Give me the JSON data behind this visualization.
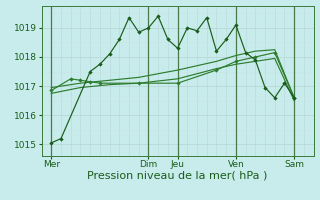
{
  "background_color": "#c8ecec",
  "grid_color_major": "#b8d8d8",
  "grid_color_minor": "#c8e4e4",
  "line_color_dark": "#1a5c1a",
  "line_color_medium": "#2e7d2e",
  "ylim": [
    1014.6,
    1019.75
  ],
  "yticks": [
    1015,
    1016,
    1017,
    1018,
    1019
  ],
  "xlabel": "Pression niveau de la mer( hPa )",
  "xlabel_fontsize": 8,
  "tick_fontsize": 6.5,
  "day_labels": [
    "Mer",
    "Dim",
    "Jeu",
    "Ven",
    "Sam"
  ],
  "day_positions": [
    0,
    10,
    13,
    19,
    25
  ],
  "xlim": [
    -1,
    27
  ],
  "series1_x": [
    0,
    1,
    4,
    5,
    6,
    7,
    8,
    9,
    10,
    11,
    12,
    13,
    14,
    15,
    16,
    17,
    18,
    19,
    20,
    21,
    22,
    23,
    24,
    25
  ],
  "series1_y": [
    1015.05,
    1015.2,
    1017.5,
    1017.75,
    1018.1,
    1018.6,
    1019.35,
    1018.85,
    1019.0,
    1019.4,
    1018.6,
    1018.3,
    1019.0,
    1018.9,
    1019.35,
    1018.2,
    1018.6,
    1019.1,
    1018.15,
    1017.9,
    1016.95,
    1016.6,
    1017.1,
    1016.6
  ],
  "series2_x": [
    0,
    2,
    3,
    4,
    5,
    9,
    13,
    17,
    19,
    21,
    23,
    25
  ],
  "series2_y": [
    1016.85,
    1017.25,
    1017.2,
    1017.15,
    1017.1,
    1017.1,
    1017.1,
    1017.55,
    1017.85,
    1018.0,
    1018.15,
    1016.6
  ],
  "series3_x": [
    0,
    3,
    6,
    9,
    13,
    17,
    19,
    21,
    23,
    25
  ],
  "series3_y": [
    1016.95,
    1017.1,
    1017.2,
    1017.3,
    1017.55,
    1017.85,
    1018.05,
    1018.2,
    1018.25,
    1016.6
  ],
  "series4_x": [
    0,
    3,
    6,
    9,
    13,
    17,
    19,
    21,
    23,
    25
  ],
  "series4_y": [
    1016.75,
    1016.95,
    1017.05,
    1017.1,
    1017.25,
    1017.6,
    1017.75,
    1017.85,
    1017.95,
    1016.5
  ]
}
